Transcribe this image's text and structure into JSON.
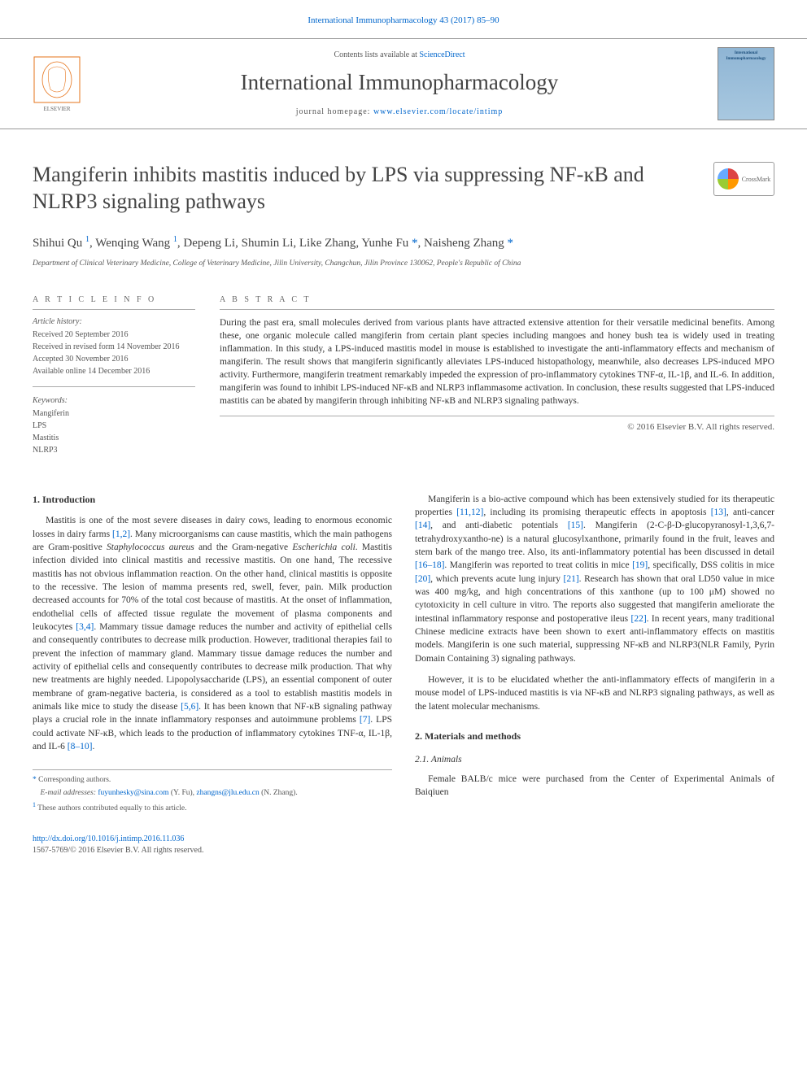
{
  "header": {
    "top_link": "International Immunopharmacology 43 (2017) 85–90",
    "contents_line_prefix": "Contents lists available at ",
    "contents_link": "ScienceDirect",
    "journal_name": "International Immunopharmacology",
    "homepage_prefix": "journal homepage: ",
    "homepage_url": "www.elsevier.com/locate/intimp",
    "cover_text": "International Immunopharmacology",
    "crossmark": "CrossMark"
  },
  "article": {
    "title": "Mangiferin inhibits mastitis induced by LPS via suppressing NF-ĸB and NLRP3 signaling pathways",
    "authors_html": "Shihui Qu <sup>1</sup>, Wenqing Wang <sup>1</sup>, Depeng Li, Shumin Li, Like Zhang, Yunhe Fu <span class='ast'>*</span>, Naisheng Zhang <span class='ast'>*</span>",
    "affiliation": "Department of Clinical Veterinary Medicine, College of Veterinary Medicine, Jilin University, Changchun, Jilin Province 130062, People's Republic of China"
  },
  "info": {
    "info_heading": "A R T I C L E   I N F O",
    "history_label": "Article history:",
    "received": "Received 20 September 2016",
    "revised": "Received in revised form 14 November 2016",
    "accepted": "Accepted 30 November 2016",
    "online": "Available online 14 December 2016",
    "keywords_label": "Keywords:",
    "keywords": [
      "Mangiferin",
      "LPS",
      "Mastitis",
      "NLRP3"
    ]
  },
  "abstract": {
    "heading": "A B S T R A C T",
    "text": "During the past era, small molecules derived from various plants have attracted extensive attention for their versatile medicinal benefits. Among these, one organic molecule called mangiferin from certain plant species including mangoes and honey bush tea is widely used in treating inflammation. In this study, a LPS-induced mastitis model in mouse is established to investigate the anti-inflammatory effects and mechanism of mangiferin. The result shows that mangiferin significantly alleviates LPS-induced histopathology, meanwhile, also decreases LPS-induced MPO activity. Furthermore, mangiferin treatment remarkably impeded the expression of pro-inflammatory cytokines TNF-α, IL-1β, and IL-6. In addition, mangiferin was found to inhibit LPS-induced NF-ĸB and NLRP3 inflammasome activation. In conclusion, these results suggested that LPS-induced mastitis can be abated by mangiferin through inhibiting NF-ĸB and NLRP3 signaling pathways.",
    "copyright": "© 2016 Elsevier B.V. All rights reserved."
  },
  "sections": {
    "s1_heading": "1. Introduction",
    "s1_p1": "Mastitis is one of the most severe diseases in dairy cows, leading to enormous economic losses in dairy farms [1,2]. Many microorganisms can cause mastitis, which the main pathogens are Gram-positive Staphylococcus aureus and the Gram-negative Escherichia coli. Mastitis infection divided into clinical mastitis and recessive mastitis. On one hand, The recessive mastitis has not obvious inflammation reaction. On the other hand, clinical mastitis is opposite to the recessive. The lesion of mamma presents red, swell, fever, pain. Milk production decreased accounts for 70% of the total cost because of mastitis. At the onset of inflammation, endothelial cells of affected tissue regulate the movement of plasma components and leukocytes [3,4]. Mammary tissue damage reduces the number and activity of epithelial cells and consequently contributes to decrease milk production. However, traditional therapies fail to prevent the infection of mammary gland. Mammary tissue damage reduces the number and activity of epithelial cells and consequently contributes to decrease milk production. That why new treatments are highly needed. Lipopolysaccharide (LPS), an essential component of outer membrane of gram-negative bacteria, is considered as a tool to establish mastitis models in animals like mice to study the disease [5,6]. It has been known that NF-ĸB signaling pathway plays a crucial role in the innate inflammatory responses and autoimmune problems [7]. LPS could activate NF-ĸB, which leads to the production of inflammatory cytokines TNF-α, IL-1β, and IL-6 [8–10].",
    "s1_p2": "Mangiferin is a bio-active compound which has been extensively studied for its therapeutic properties [11,12], including its promising therapeutic effects in apoptosis [13], anti-cancer [14], and anti-diabetic potentials [15]. Mangiferin (2-C-β-D-glucopyranosyl-1,3,6,7-tetrahydroxyxantho-ne) is a natural glucosylxanthone, primarily found in the fruit, leaves and stem bark of the mango tree. Also, its anti-inflammatory potential has been discussed in detail [16–18]. Mangiferin was reported to treat colitis in mice [19], specifically, DSS colitis in mice [20], which prevents acute lung injury [21]. Research has shown that oral LD50 value in mice was 400 mg/kg, and high concentrations of this xanthone (up to 100 μM) showed no cytotoxicity in cell culture in vitro. The reports also suggested that mangiferin ameliorate the intestinal inflammatory response and postoperative ileus [22]. In recent years, many traditional Chinese medicine extracts have been shown to exert anti-inflammatory effects on mastitis models. Mangiferin is one such material, suppressing NF-ĸB and NLRP3(NLR Family, Pyrin Domain Containing 3) signaling pathways.",
    "s1_p3": "However, it is to be elucidated whether the anti-inflammatory effects of mangiferin in a mouse model of LPS-induced mastitis is via NF-ĸB and NLRP3 signaling pathways, as well as the latent molecular mechanisms.",
    "s2_heading": "2. Materials and methods",
    "s2_1_heading": "2.1. Animals",
    "s2_1_p1": "Female BALB/c mice were purchased from the Center of Experimental Animals of Baiqiuen"
  },
  "footnotes": {
    "corresponding": "Corresponding authors.",
    "emails_label": "E-mail addresses: ",
    "email1": "fuyunhesky@sina.com",
    "email1_name": " (Y. Fu), ",
    "email2": "zhangns@jlu.edu.cn",
    "email2_name": " (N. Zhang).",
    "contrib": "These authors contributed equally to this article."
  },
  "footer": {
    "doi": "http://dx.doi.org/10.1016/j.intimp.2016.11.036",
    "issn_line": "1567-5769/© 2016 Elsevier B.V. All rights reserved."
  },
  "colors": {
    "link": "#0066cc",
    "text": "#333333",
    "border": "#aaaaaa"
  }
}
